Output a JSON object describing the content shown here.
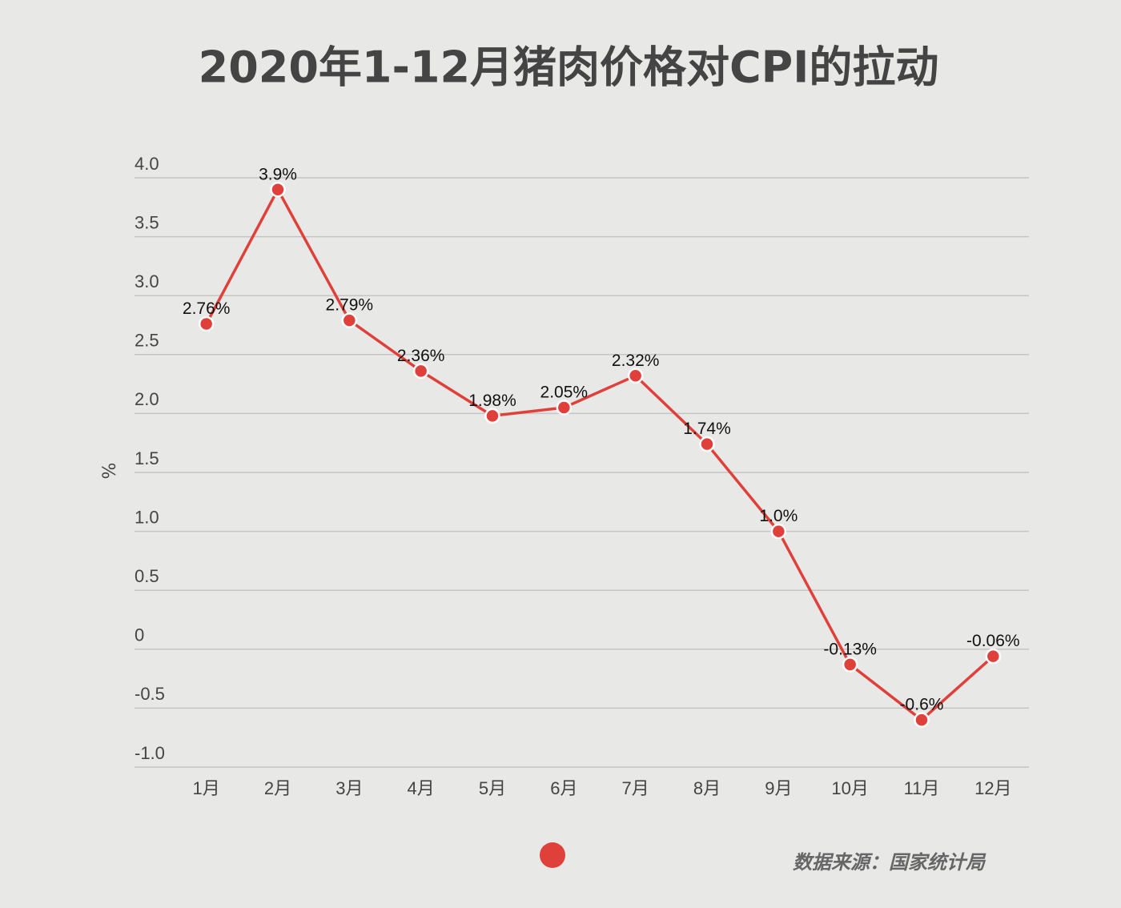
{
  "chart_data": {
    "type": "line",
    "title": "2020年1-12月猪肉价格对CPI的拉动",
    "y_label": "%",
    "categories": [
      "1月",
      "2月",
      "3月",
      "4月",
      "5月",
      "6月",
      "7月",
      "8月",
      "9月",
      "10月",
      "11月",
      "12月"
    ],
    "values": [
      2.76,
      3.9,
      2.79,
      2.36,
      1.98,
      2.05,
      2.32,
      1.74,
      1.0,
      -0.13,
      -0.6,
      -0.06
    ],
    "value_labels": [
      "2.76%",
      "3.9%",
      "2.79%",
      "2.36%",
      "1.98%",
      "2.05%",
      "2.32%",
      "1.74%",
      "1.0%",
      "-0.13%",
      "-0.6%",
      "-0.06%"
    ],
    "color": "#e0403a",
    "ylim": [
      -1,
      4
    ],
    "yticks": [
      {
        "value": -1,
        "label": "-1.0"
      },
      -0.5,
      0,
      0.5,
      {
        "value": 1,
        "label": "1.0"
      },
      1.5,
      {
        "value": 2,
        "label": "2.0"
      },
      2.5,
      {
        "value": 3,
        "label": "3.0"
      },
      3.5,
      {
        "value": 4,
        "label": "4.0"
      }
    ],
    "grid": true,
    "source": "数据来源：国家统计局"
  }
}
